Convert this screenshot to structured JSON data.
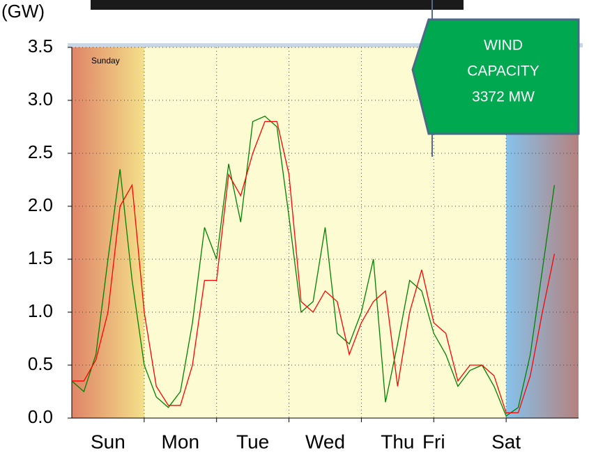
{
  "chart_data": {
    "type": "line",
    "y_unit": "(GW)",
    "annotations": [
      "Sunday",
      "WIND",
      "CAPACITY",
      "3372 MW"
    ],
    "x": [
      0,
      4,
      8,
      12,
      16,
      20,
      24,
      28,
      32,
      36,
      40,
      44,
      48,
      52,
      56,
      60,
      64,
      68,
      72,
      76,
      80,
      84,
      88,
      92,
      96,
      100,
      104,
      108,
      112,
      116,
      120,
      124,
      128,
      132,
      136,
      140,
      144,
      148,
      152,
      156,
      160,
      164,
      168
    ],
    "xlim": [
      0,
      168
    ],
    "xticks": [
      {
        "value": 12,
        "label": "Sun"
      },
      {
        "value": 36,
        "label": "Mon"
      },
      {
        "value": 60,
        "label": "Tue"
      },
      {
        "value": 84,
        "label": "Wed"
      },
      {
        "value": 108,
        "label": "Thu"
      },
      {
        "value": 120,
        "label": "Fri"
      },
      {
        "value": 144,
        "label": "Sat"
      }
    ],
    "ylim": [
      0,
      3.5
    ],
    "yticks": [
      {
        "value": 0,
        "label": "0.0"
      },
      0.5,
      {
        "value": 1,
        "label": "1.0"
      },
      1.5,
      {
        "value": 2,
        "label": "2.0"
      },
      2.5,
      {
        "value": 3,
        "label": "3.0"
      },
      3.5
    ],
    "grid": true,
    "series": [
      {
        "color": "#008000",
        "values": [
          0.35,
          0.25,
          0.6,
          1.5,
          2.35,
          1.3,
          0.5,
          0.2,
          0.1,
          0.25,
          0.9,
          1.8,
          1.5,
          2.4,
          1.85,
          2.8,
          2.85,
          2.75,
          1.9,
          1.0,
          1.1,
          1.8,
          0.8,
          0.7,
          1.0,
          1.5,
          0.15,
          0.7,
          1.3,
          1.2,
          0.8,
          0.6,
          0.3,
          0.45,
          0.5,
          0.3,
          0.02,
          0.1,
          0.6,
          1.4,
          2.2,
          null,
          null
        ]
      },
      {
        "color": "#ff0000",
        "values": [
          0.35,
          0.35,
          0.55,
          1.0,
          2.0,
          2.2,
          1.0,
          0.3,
          0.12,
          0.12,
          0.5,
          1.3,
          1.3,
          2.3,
          2.1,
          2.5,
          2.8,
          2.8,
          2.3,
          1.1,
          1.0,
          1.2,
          1.1,
          0.6,
          0.9,
          1.1,
          1.2,
          0.3,
          1.0,
          1.4,
          0.9,
          0.8,
          0.35,
          0.5,
          0.5,
          0.4,
          0.05,
          0.05,
          0.4,
          1.0,
          1.55,
          null,
          null
        ]
      }
    ]
  }
}
